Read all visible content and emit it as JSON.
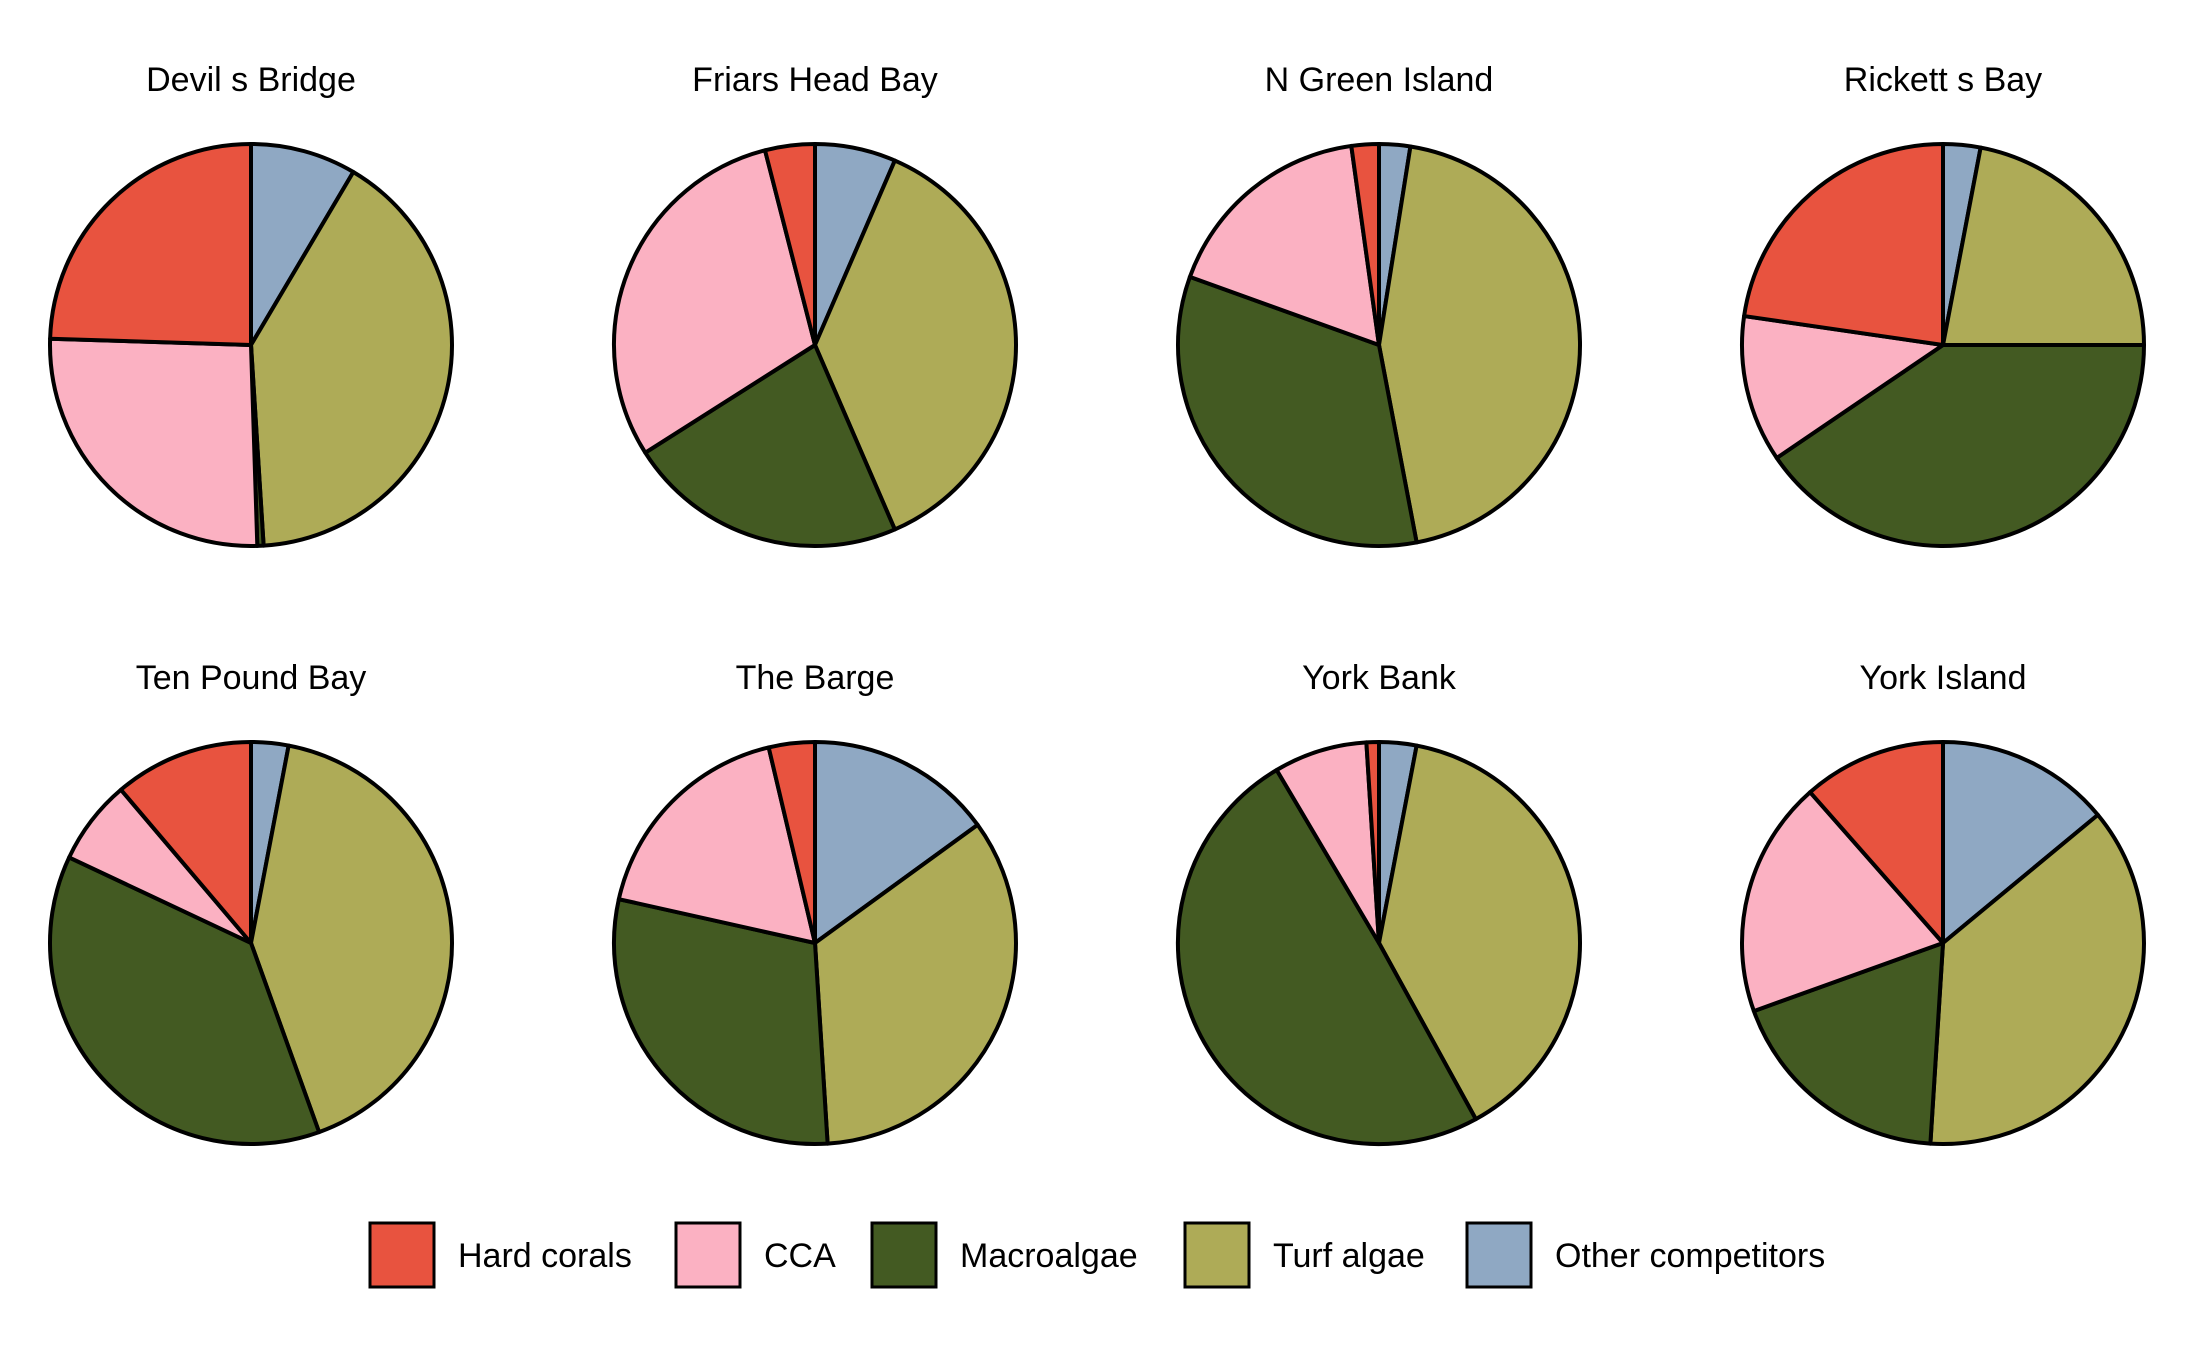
{
  "chart_data": {
    "type": "pie",
    "categories": [
      "Hard corals",
      "CCA",
      "Macroalgae",
      "Turf algae",
      "Other competitors"
    ],
    "colors": {
      "Hard corals": "#e8533f",
      "CCA": "#fbb1c2",
      "Macroalgae": "#435a22",
      "Turf algae": "#aeab57",
      "Other competitors": "#8fa8c3"
    },
    "legend_position": "bottom",
    "panels": [
      {
        "title": "Devil s Bridge",
        "values": {
          "Other competitors": 8.5,
          "Turf algae": 40.5,
          "Macroalgae": 0.5,
          "CCA": 26.0,
          "Hard corals": 24.5
        }
      },
      {
        "title": "Friars Head Bay",
        "values": {
          "Other competitors": 6.5,
          "Turf algae": 37.0,
          "Macroalgae": 22.5,
          "CCA": 30.0,
          "Hard corals": 4.0
        }
      },
      {
        "title": "N Green Island",
        "values": {
          "Other competitors": 2.5,
          "Turf algae": 44.5,
          "Macroalgae": 33.5,
          "CCA": 17.3,
          "Hard corals": 2.2
        }
      },
      {
        "title": "Rickett s Bay",
        "values": {
          "Other competitors": 3.0,
          "Turf algae": 22.0,
          "Macroalgae": 40.5,
          "CCA": 11.8,
          "Hard corals": 22.7
        }
      },
      {
        "title": "Ten Pound Bay",
        "values": {
          "Other competitors": 3.0,
          "Turf algae": 41.5,
          "Macroalgae": 37.5,
          "CCA": 6.8,
          "Hard corals": 11.2
        }
      },
      {
        "title": "The Barge",
        "values": {
          "Other competitors": 15.0,
          "Turf algae": 34.0,
          "Macroalgae": 29.5,
          "CCA": 17.8,
          "Hard corals": 3.7
        }
      },
      {
        "title": "York Bank",
        "values": {
          "Other competitors": 3.0,
          "Turf algae": 39.0,
          "Macroalgae": 49.5,
          "CCA": 7.5,
          "Hard corals": 1.0
        }
      },
      {
        "title": "York Island",
        "values": {
          "Other competitors": 14.0,
          "Turf algae": 37.0,
          "Macroalgae": 18.5,
          "CCA": 19.0,
          "Hard corals": 11.5
        }
      }
    ]
  }
}
